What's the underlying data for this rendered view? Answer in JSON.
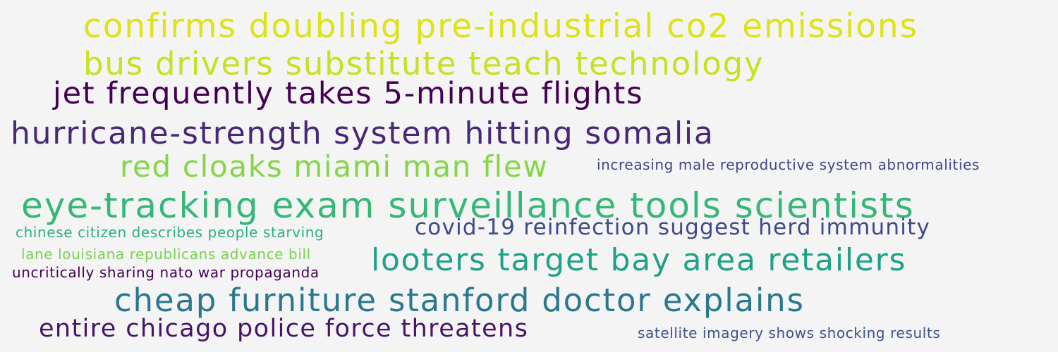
{
  "phrases": [
    {
      "text": "confirms doubling pre-industrial co2 emissions",
      "color": "#dde318"
    },
    {
      "text": "bus drivers substitute teach technology",
      "color": "#c8e020"
    },
    {
      "text": "jet frequently takes 5-minute flights",
      "color": "#440154"
    },
    {
      "text": "hurricane-strength system hitting somalia",
      "color": "#482777"
    },
    {
      "text": "red cloaks miami man flew",
      "color": "#86d549"
    },
    {
      "text": "increasing male reproductive system abnormalities",
      "color": "#414487"
    },
    {
      "text": "eye-tracking exam surveillance tools scientists",
      "color": "#35b779"
    },
    {
      "text": "chinese citizen describes people starving",
      "color": "#29af7f"
    },
    {
      "text": "covid-19 reinfection suggest herd immunity",
      "color": "#3e4a89"
    },
    {
      "text": "lane louisiana republicans advance bill",
      "color": "#7ad151"
    },
    {
      "text": "looters target bay area retailers",
      "color": "#1fa188"
    },
    {
      "text": "uncritically sharing nato war propaganda",
      "color": "#440154"
    },
    {
      "text": "cheap furniture stanford doctor explains",
      "color": "#2a788e"
    },
    {
      "text": "entire chicago police force threatens",
      "color": "#481467"
    },
    {
      "text": "satellite imagery shows shocking results",
      "color": "#3b528b"
    }
  ]
}
